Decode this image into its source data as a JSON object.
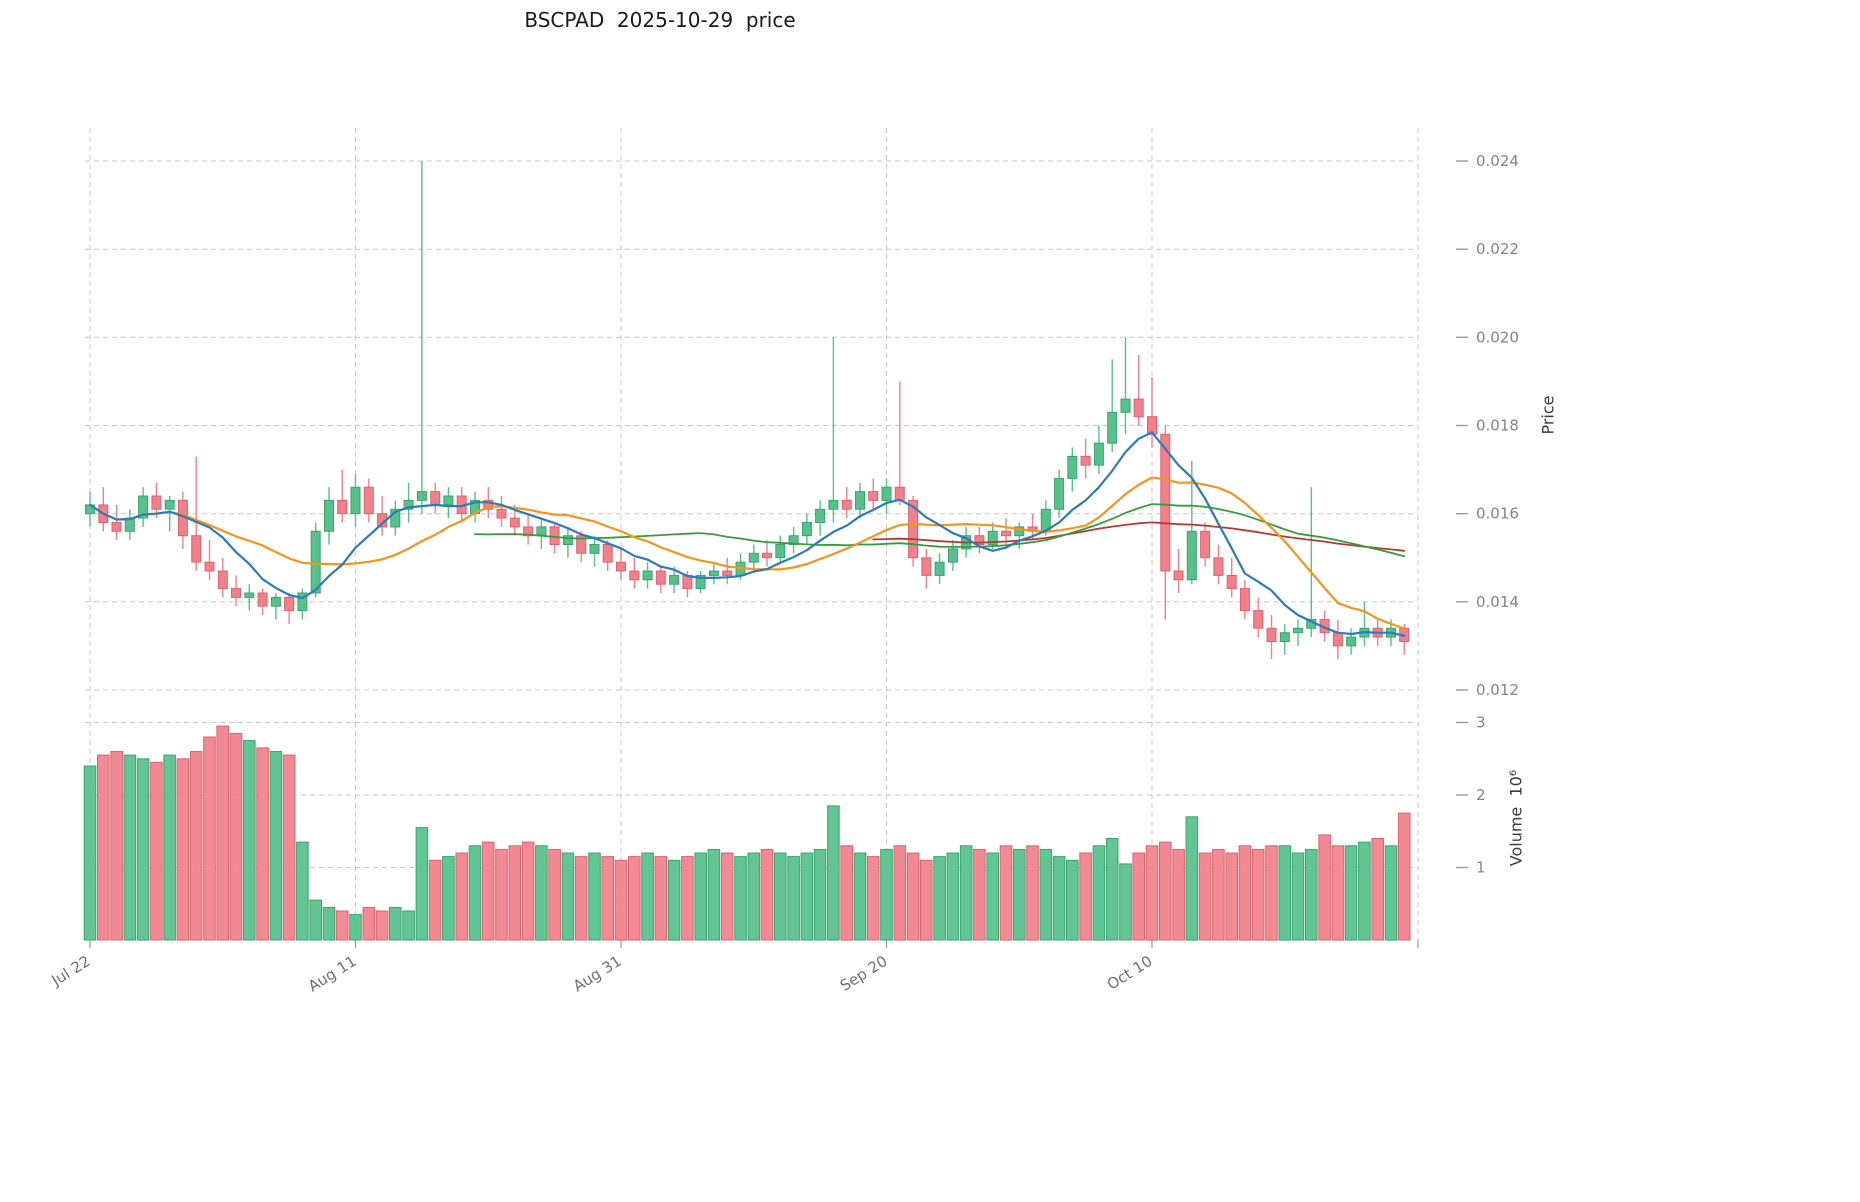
{
  "colors": {
    "up": "#57c08b",
    "up_edge": "#3aa46e",
    "down": "#f0808a",
    "down_edge": "#d96470",
    "grid": "#c9c9c9",
    "tick_text": "#848484",
    "axis_tick_mark": "#9a9a9a"
  },
  "chart_data": {
    "type": "candlestick_with_volume",
    "title": "BSCPAD  2025-10-29  price",
    "symbol": "BSCPAD",
    "as_of_date": "2025-10-29",
    "price_axis": {
      "label": "Price",
      "ticks": [
        0.012,
        0.014,
        0.016,
        0.018,
        0.02,
        0.022,
        0.024
      ]
    },
    "volume_axis": {
      "label": "Volume  10⁶",
      "ticks": [
        1,
        2,
        3
      ]
    },
    "x_ticks": [
      {
        "label": "Jul 22",
        "index": 0
      },
      {
        "label": "Aug 11",
        "index": 20
      },
      {
        "label": "Aug 31",
        "index": 40
      },
      {
        "label": "Sep 20",
        "index": 60
      },
      {
        "label": "Oct 10",
        "index": 80
      }
    ],
    "moving_averages": [
      {
        "name": "MA7",
        "window": 7,
        "color": "#2f7ab8",
        "width": 2.2,
        "partial": true
      },
      {
        "name": "MA14",
        "window": 14,
        "color": "#f5941f",
        "width": 2.2,
        "partial": true
      },
      {
        "name": "MA30",
        "window": 30,
        "color": "#3b9a3f",
        "width": 1.8,
        "partial": false
      },
      {
        "name": "MA60",
        "window": 60,
        "color": "#b23a32",
        "width": 1.8,
        "partial": false
      }
    ],
    "series": {
      "open": [
        0.016,
        0.0162,
        0.0158,
        0.0156,
        0.0159,
        0.0164,
        0.0161,
        0.0163,
        0.0155,
        0.0149,
        0.0147,
        0.0143,
        0.0141,
        0.0142,
        0.0139,
        0.0141,
        0.0138,
        0.0142,
        0.0156,
        0.0163,
        0.016,
        0.0166,
        0.016,
        0.0157,
        0.0161,
        0.0163,
        0.0165,
        0.0162,
        0.0164,
        0.016,
        0.0163,
        0.0161,
        0.0159,
        0.0157,
        0.0155,
        0.0157,
        0.0153,
        0.0155,
        0.0151,
        0.0153,
        0.0149,
        0.0147,
        0.0145,
        0.0147,
        0.0144,
        0.0146,
        0.0143,
        0.0146,
        0.0147,
        0.0146,
        0.0149,
        0.0151,
        0.015,
        0.0153,
        0.0155,
        0.0158,
        0.0161,
        0.0163,
        0.0161,
        0.0165,
        0.0163,
        0.0166,
        0.0163,
        0.015,
        0.0146,
        0.0149,
        0.0152,
        0.0155,
        0.0153,
        0.0156,
        0.0155,
        0.0157,
        0.0156,
        0.0161,
        0.0168,
        0.0173,
        0.0171,
        0.0176,
        0.0183,
        0.0186,
        0.0182,
        0.0178,
        0.0147,
        0.0145,
        0.0156,
        0.015,
        0.0146,
        0.0143,
        0.0138,
        0.0134,
        0.0131,
        0.0133,
        0.0134,
        0.0136,
        0.0133,
        0.013,
        0.0132,
        0.0134,
        0.0132,
        0.0134
      ],
      "high": [
        0.0165,
        0.0166,
        0.0162,
        0.0161,
        0.0166,
        0.0167,
        0.0164,
        0.0165,
        0.0173,
        0.0154,
        0.015,
        0.0146,
        0.0144,
        0.0143,
        0.0142,
        0.0142,
        0.0143,
        0.0158,
        0.0166,
        0.017,
        0.0169,
        0.0168,
        0.0164,
        0.0163,
        0.0167,
        0.024,
        0.0167,
        0.0166,
        0.0166,
        0.0165,
        0.0166,
        0.0164,
        0.0162,
        0.016,
        0.0159,
        0.0158,
        0.0157,
        0.0156,
        0.0155,
        0.0154,
        0.0152,
        0.015,
        0.0149,
        0.0148,
        0.0148,
        0.0147,
        0.0147,
        0.0149,
        0.015,
        0.0151,
        0.0153,
        0.0154,
        0.0155,
        0.0157,
        0.016,
        0.0163,
        0.02,
        0.0166,
        0.0167,
        0.0168,
        0.0168,
        0.019,
        0.0164,
        0.0152,
        0.0151,
        0.0154,
        0.0157,
        0.0157,
        0.0158,
        0.0159,
        0.0158,
        0.016,
        0.0163,
        0.017,
        0.0175,
        0.0177,
        0.018,
        0.0195,
        0.02,
        0.0196,
        0.0191,
        0.018,
        0.0152,
        0.0172,
        0.0158,
        0.0153,
        0.015,
        0.0145,
        0.0141,
        0.0137,
        0.0135,
        0.0136,
        0.0166,
        0.0138,
        0.0136,
        0.0134,
        0.014,
        0.0136,
        0.0136,
        0.0135
      ],
      "low": [
        0.0157,
        0.0156,
        0.0154,
        0.0154,
        0.0157,
        0.0159,
        0.0156,
        0.0152,
        0.0147,
        0.0145,
        0.0141,
        0.0139,
        0.0138,
        0.0137,
        0.0136,
        0.0135,
        0.0136,
        0.0141,
        0.0153,
        0.0158,
        0.0157,
        0.0158,
        0.0155,
        0.0155,
        0.0158,
        0.016,
        0.016,
        0.0159,
        0.0158,
        0.0158,
        0.0159,
        0.0157,
        0.0155,
        0.0153,
        0.0152,
        0.0151,
        0.015,
        0.0149,
        0.0148,
        0.0147,
        0.0145,
        0.0143,
        0.0143,
        0.0142,
        0.0142,
        0.0141,
        0.0142,
        0.0144,
        0.0144,
        0.0145,
        0.0147,
        0.0148,
        0.0149,
        0.0151,
        0.0153,
        0.0155,
        0.0158,
        0.0159,
        0.0159,
        0.0161,
        0.016,
        0.0162,
        0.0148,
        0.0143,
        0.0144,
        0.0147,
        0.015,
        0.0151,
        0.0152,
        0.0153,
        0.0152,
        0.0154,
        0.0155,
        0.0159,
        0.0165,
        0.0168,
        0.0169,
        0.0174,
        0.0178,
        0.018,
        0.0175,
        0.0136,
        0.0142,
        0.0144,
        0.0148,
        0.0144,
        0.0141,
        0.0136,
        0.0132,
        0.0127,
        0.0128,
        0.013,
        0.0132,
        0.0131,
        0.0127,
        0.0128,
        0.013,
        0.013,
        0.013,
        0.0128
      ],
      "close": [
        0.0162,
        0.0158,
        0.0156,
        0.0159,
        0.0164,
        0.0161,
        0.0163,
        0.0155,
        0.0149,
        0.0147,
        0.0143,
        0.0141,
        0.0142,
        0.0139,
        0.0141,
        0.0138,
        0.0142,
        0.0156,
        0.0163,
        0.016,
        0.0166,
        0.016,
        0.0157,
        0.0161,
        0.0163,
        0.0165,
        0.0162,
        0.0164,
        0.016,
        0.0163,
        0.0161,
        0.0159,
        0.0157,
        0.0155,
        0.0157,
        0.0153,
        0.0155,
        0.0151,
        0.0153,
        0.0149,
        0.0147,
        0.0145,
        0.0147,
        0.0144,
        0.0146,
        0.0143,
        0.0146,
        0.0147,
        0.0146,
        0.0149,
        0.0151,
        0.015,
        0.0153,
        0.0155,
        0.0158,
        0.0161,
        0.0163,
        0.0161,
        0.0165,
        0.0163,
        0.0166,
        0.0163,
        0.015,
        0.0146,
        0.0149,
        0.0152,
        0.0155,
        0.0153,
        0.0156,
        0.0155,
        0.0157,
        0.0156,
        0.0161,
        0.0168,
        0.0173,
        0.0171,
        0.0176,
        0.0183,
        0.0186,
        0.0182,
        0.0178,
        0.0147,
        0.0145,
        0.0156,
        0.015,
        0.0146,
        0.0143,
        0.0138,
        0.0134,
        0.0131,
        0.0133,
        0.0134,
        0.0136,
        0.0133,
        0.013,
        0.0132,
        0.0134,
        0.0132,
        0.0134,
        0.0131
      ],
      "volume_millions": [
        2.4,
        2.55,
        2.6,
        2.55,
        2.5,
        2.45,
        2.55,
        2.5,
        2.6,
        2.8,
        2.95,
        2.85,
        2.75,
        2.65,
        2.6,
        2.55,
        1.35,
        0.55,
        0.45,
        0.4,
        0.35,
        0.45,
        0.4,
        0.45,
        0.4,
        1.55,
        1.1,
        1.15,
        1.2,
        1.3,
        1.35,
        1.25,
        1.3,
        1.35,
        1.3,
        1.25,
        1.2,
        1.15,
        1.2,
        1.15,
        1.1,
        1.15,
        1.2,
        1.15,
        1.1,
        1.15,
        1.2,
        1.25,
        1.2,
        1.15,
        1.2,
        1.25,
        1.2,
        1.15,
        1.2,
        1.25,
        1.85,
        1.3,
        1.2,
        1.15,
        1.25,
        1.3,
        1.2,
        1.1,
        1.15,
        1.2,
        1.3,
        1.25,
        1.2,
        1.3,
        1.25,
        1.3,
        1.25,
        1.15,
        1.1,
        1.2,
        1.3,
        1.4,
        1.05,
        1.2,
        1.3,
        1.35,
        1.25,
        1.7,
        1.2,
        1.25,
        1.2,
        1.3,
        1.25,
        1.3,
        1.3,
        1.2,
        1.25,
        1.45,
        1.3,
        1.3,
        1.35,
        1.4,
        1.3,
        1.75
      ]
    }
  }
}
